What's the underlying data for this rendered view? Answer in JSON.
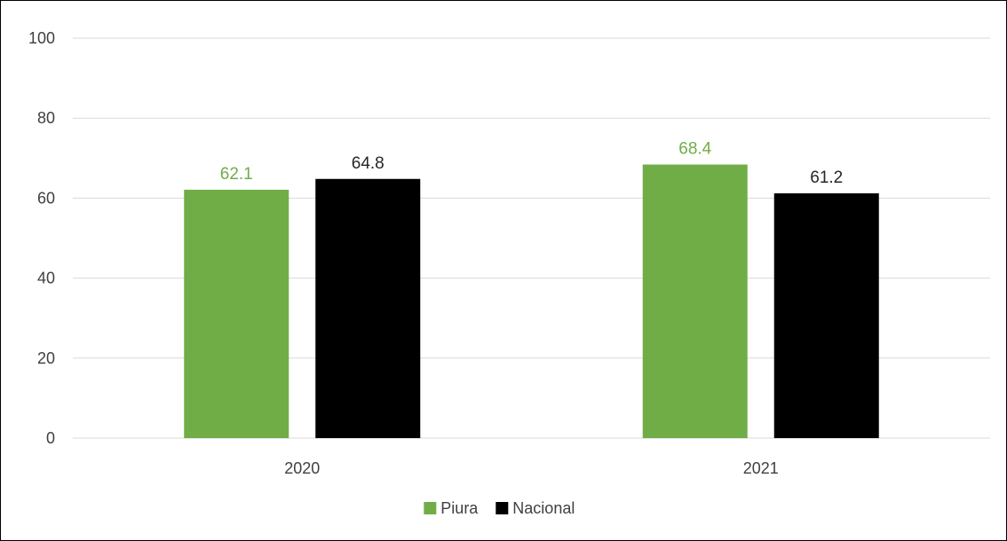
{
  "chart_data": {
    "type": "bar",
    "categories": [
      "2020",
      "2021"
    ],
    "series": [
      {
        "name": "Piura",
        "values": [
          62.1,
          68.4
        ],
        "color": "#70ad47",
        "label_color": "#70ad47"
      },
      {
        "name": "Nacional",
        "values": [
          64.8,
          61.2
        ],
        "color": "#000000",
        "label_color": "#262626"
      }
    ],
    "data_labels": [
      [
        "62.1",
        "68.4"
      ],
      [
        "64.8",
        "61.2"
      ]
    ],
    "ylim": [
      0,
      100
    ],
    "yticks": [
      0,
      20,
      40,
      60,
      80,
      100
    ],
    "ytick_labels": [
      "0",
      "20",
      "40",
      "60",
      "80",
      "100"
    ],
    "grid": true,
    "grid_color": "#d9d9d9",
    "legend": "bottom",
    "title": "",
    "xlabel": "",
    "ylabel": ""
  }
}
